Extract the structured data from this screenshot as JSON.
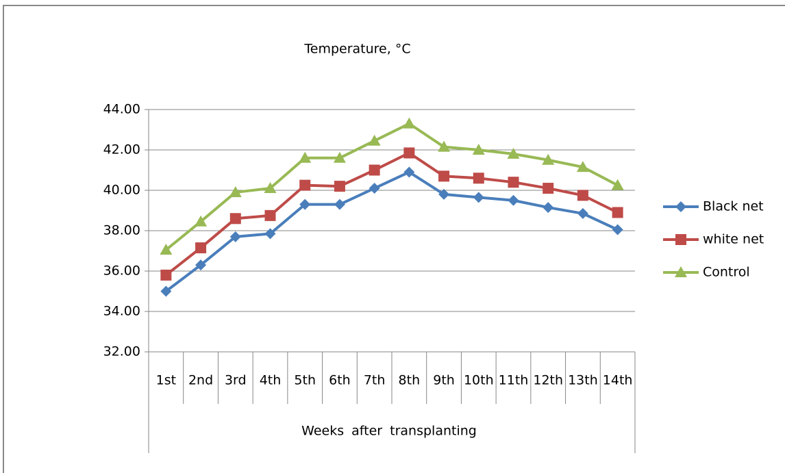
{
  "chart_data": {
    "type": "line",
    "title": "Temperature, °C",
    "x_label": "Weeks after transplanting",
    "categories": [
      "1st",
      "2nd",
      "3rd",
      "4th",
      "5th",
      "6th",
      "7th",
      "8th",
      "9th",
      "10th",
      "11th",
      "12th",
      "13th",
      "14th"
    ],
    "series": [
      {
        "name": "Black net",
        "color": "#4a7ebb",
        "marker": "diamond",
        "values": [
          35.0,
          36.3,
          37.7,
          37.85,
          39.3,
          39.3,
          40.1,
          40.9,
          39.8,
          39.65,
          39.5,
          39.15,
          38.85,
          38.05
        ]
      },
      {
        "name": "white net",
        "color": "#be4b48",
        "marker": "square",
        "values": [
          35.8,
          37.15,
          38.6,
          38.75,
          40.25,
          40.2,
          41.0,
          41.85,
          40.7,
          40.6,
          40.4,
          40.1,
          39.75,
          38.9
        ]
      },
      {
        "name": "Control",
        "color": "#98b954",
        "marker": "triangle",
        "values": [
          37.05,
          38.45,
          39.9,
          40.1,
          41.6,
          41.6,
          42.45,
          43.3,
          42.15,
          42.0,
          41.8,
          41.5,
          41.15,
          40.25
        ]
      }
    ],
    "ylim": [
      32,
      44
    ],
    "yticks": [
      {
        "value": 32,
        "label": "32.00"
      },
      {
        "value": 34,
        "label": "34.00"
      },
      {
        "value": 36,
        "label": "36.00"
      },
      {
        "value": 38,
        "label": "38.00"
      },
      {
        "value": 40,
        "label": "40.00"
      },
      {
        "value": 42,
        "label": "42.00"
      },
      {
        "value": 44,
        "label": "44.00"
      }
    ],
    "grid": true,
    "legend": "right"
  }
}
